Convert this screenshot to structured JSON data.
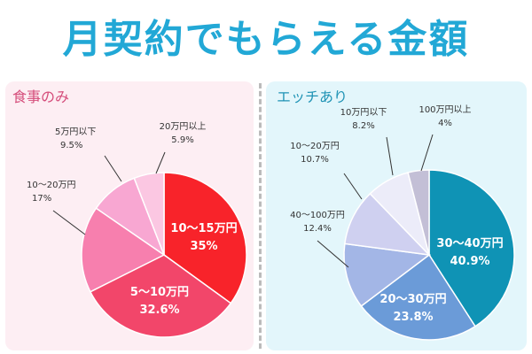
{
  "title": "月契約でもらえる金額",
  "colors": {
    "title": "#22a8d6",
    "left_panel": "#fdeef3",
    "right_panel": "#e3f6fb"
  },
  "chart_data": [
    {
      "type": "pie",
      "title": "食事のみ",
      "slices": [
        {
          "label": "10〜15万円",
          "value": 35,
          "value_text": "35%",
          "color": "#f8232a",
          "inside": true
        },
        {
          "label": "5〜10万円",
          "value": 32.6,
          "value_text": "32.6%",
          "color": "#f2466a",
          "inside": true
        },
        {
          "label": "10〜20万円",
          "value": 17,
          "value_text": "17%",
          "color": "#f77fae",
          "inside": false
        },
        {
          "label": "5万円以下",
          "value": 9.5,
          "value_text": "9.5%",
          "color": "#f8a7d2",
          "inside": false
        },
        {
          "label": "20万円以上",
          "value": 5.9,
          "value_text": "5.9%",
          "color": "#fbc7e2",
          "inside": false
        }
      ]
    },
    {
      "type": "pie",
      "title": "エッチあり",
      "slices": [
        {
          "label": "30〜40万円",
          "value": 40.9,
          "value_text": "40.9%",
          "color": "#0f93b5",
          "inside": true
        },
        {
          "label": "20〜30万円",
          "value": 23.8,
          "value_text": "23.8%",
          "color": "#6b9bd8",
          "inside": true
        },
        {
          "label": "40〜100万円",
          "value": 12.4,
          "value_text": "12.4%",
          "color": "#a3b6e6",
          "inside": false
        },
        {
          "label": "10〜20万円",
          "value": 10.7,
          "value_text": "10.7%",
          "color": "#cfd0f0",
          "inside": false
        },
        {
          "label": "10万円以下",
          "value": 8.2,
          "value_text": "8.2%",
          "color": "#ececf9",
          "inside": false
        },
        {
          "label": "100万円以上",
          "value": 4,
          "value_text": "4%",
          "color": "#c3bfd6",
          "inside": false
        }
      ]
    }
  ]
}
